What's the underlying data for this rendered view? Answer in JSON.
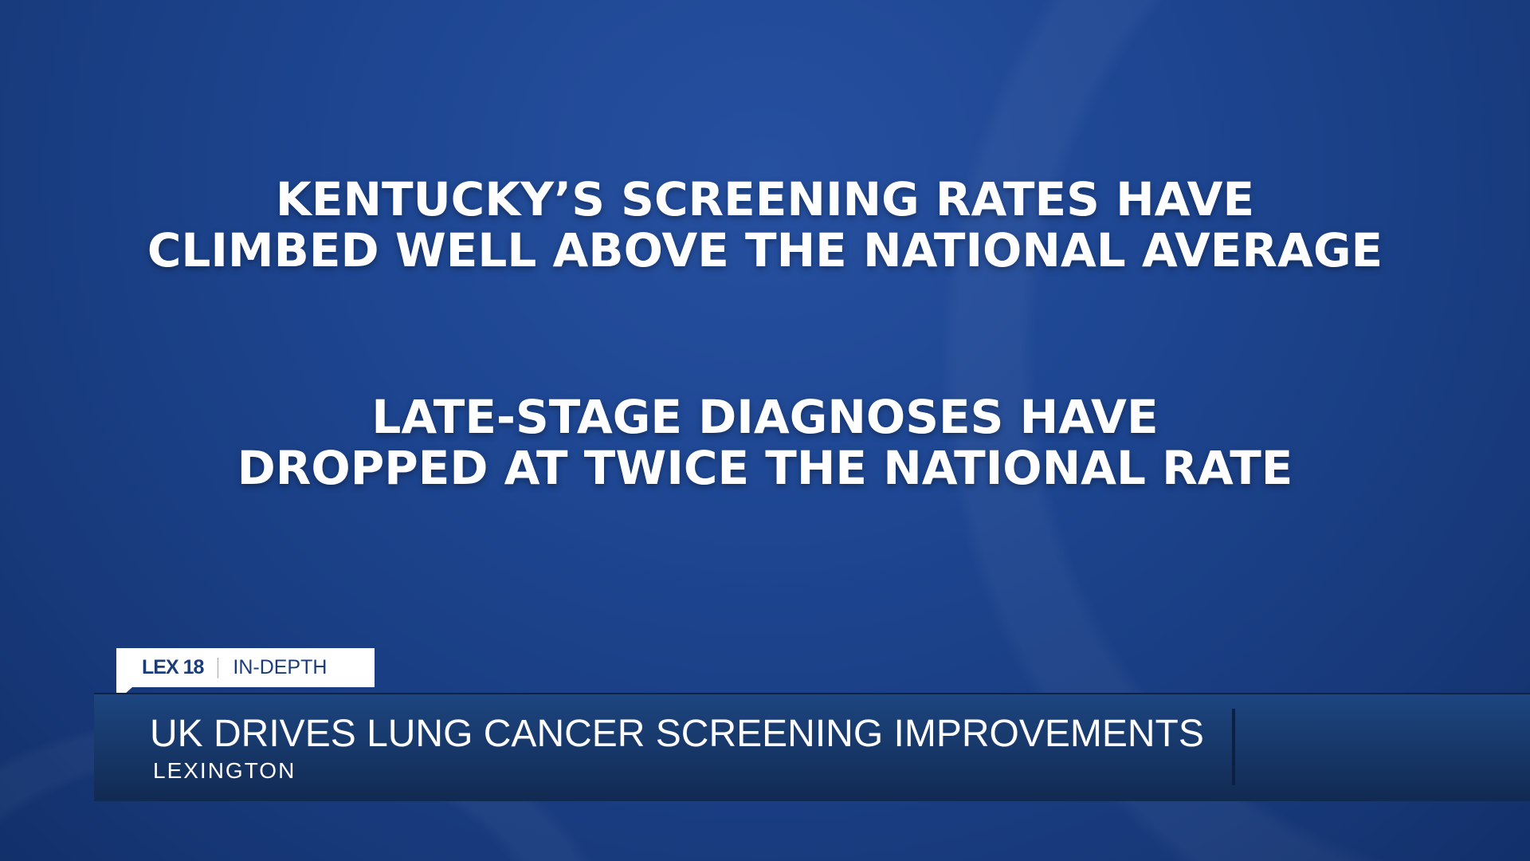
{
  "statements": [
    {
      "line1": "KENTUCKY’S SCREENING RATES HAVE",
      "line2": "CLIMBED WELL ABOVE THE NATIONAL AVERAGE"
    },
    {
      "line1": "LATE-STAGE DIAGNOSES HAVE",
      "line2": "DROPPED AT TWICE THE NATIONAL RATE"
    }
  ],
  "lower_third": {
    "brand": "LEX 18",
    "segment": "IN-DEPTH",
    "headline": "UK DRIVES LUNG CANCER SCREENING IMPROVEMENTS",
    "location": "LEXINGTON"
  },
  "colors": {
    "background": "#1d4590",
    "bar": "#163562",
    "brand_text": "#1c3c78"
  }
}
